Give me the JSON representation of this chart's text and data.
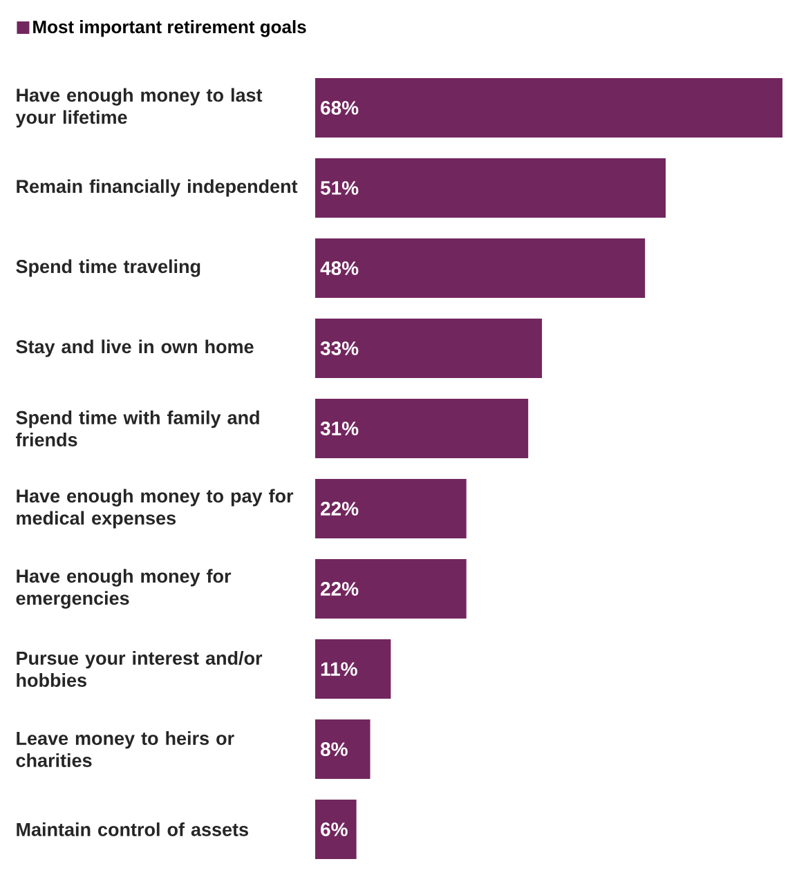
{
  "chart_data": {
    "type": "bar",
    "orientation": "horizontal",
    "legend": "top left",
    "tick_labels": "y",
    "categories": [
      "Have enough money to last your lifetime",
      "Remain financially independent",
      "Spend time traveling",
      "Stay and live in own home",
      "Spend time with family and friends",
      "Have enough money to pay for medical expenses",
      "Have enough money for emergencies",
      "Pursue your interest and/or hobbies",
      "Leave money to heirs or charities",
      "Maintain control of assets"
    ],
    "series": [
      {
        "name": "Most important retirement goals",
        "color": "#72265e",
        "values": [
          68,
          51,
          48,
          33,
          31,
          22,
          22,
          11,
          8,
          6
        ],
        "value_labels": [
          "68%",
          "51%",
          "48%",
          "33%",
          "31%",
          "22%",
          "22%",
          "11%",
          "8%",
          "6%"
        ]
      }
    ]
  }
}
